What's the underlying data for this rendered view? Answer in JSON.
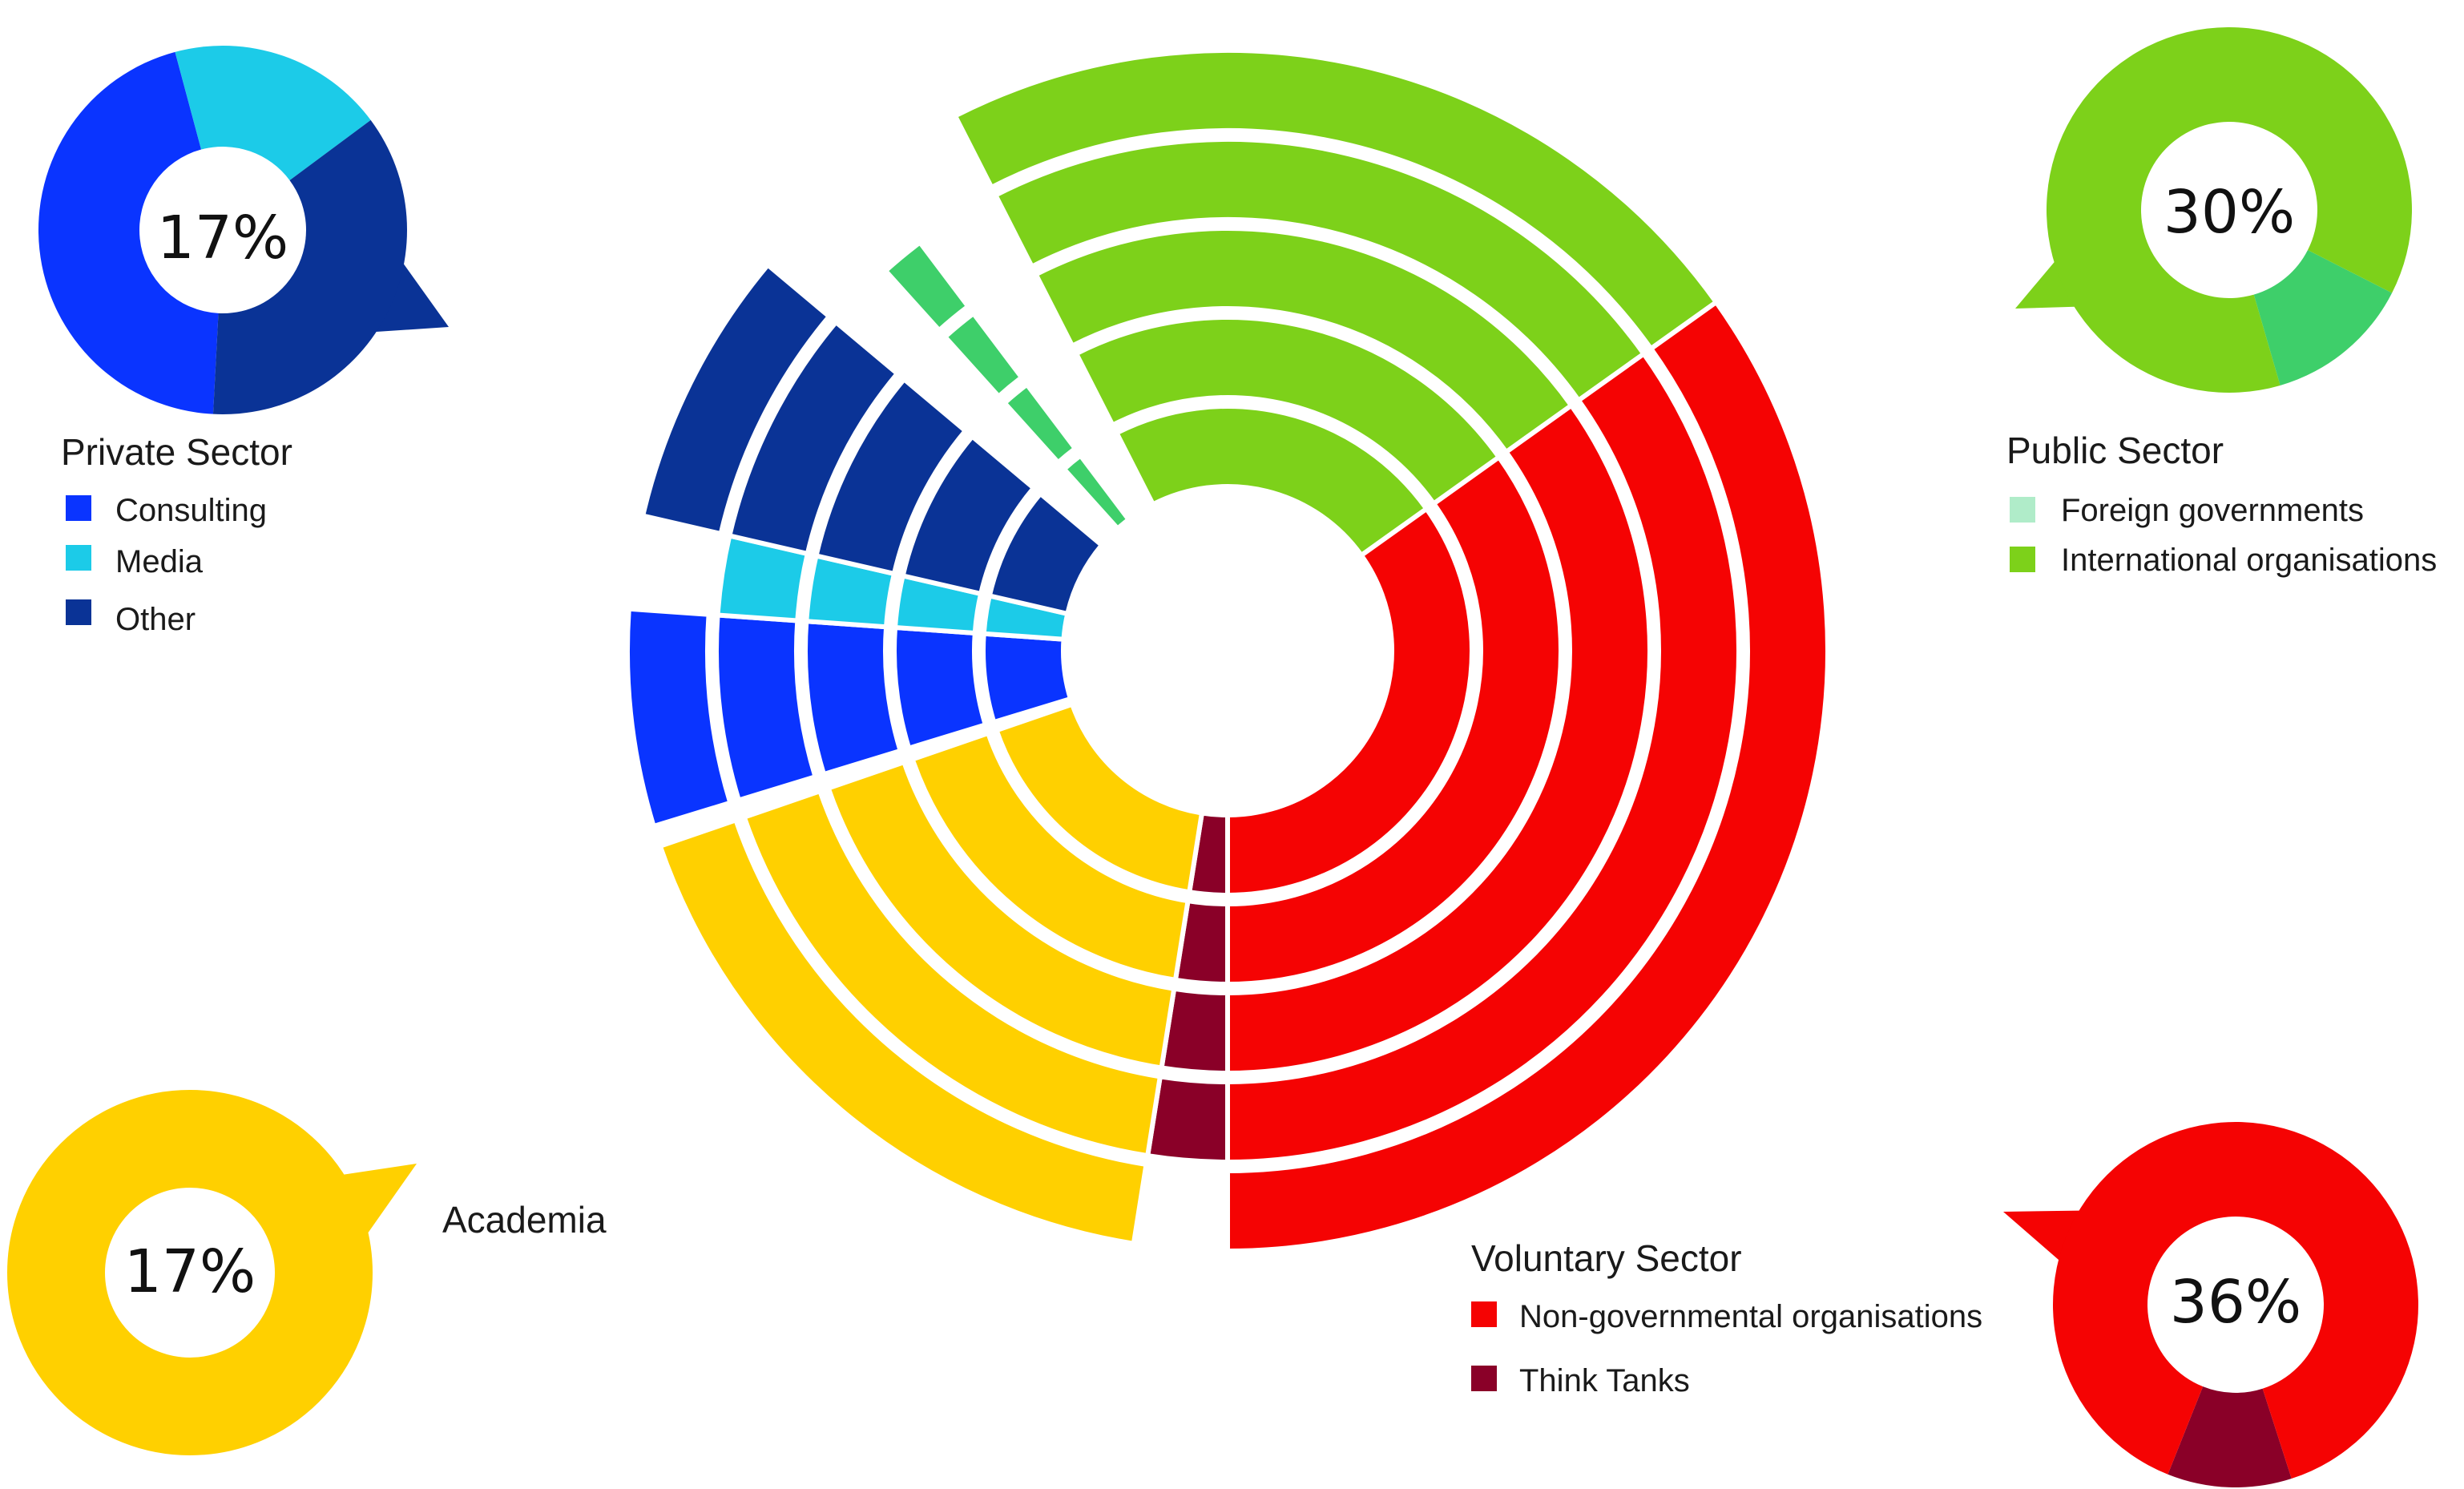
{
  "colors": {
    "consulting": "#0a34ff",
    "media": "#1ccbe8",
    "other": "#0a3396",
    "foreign": "#3ecf6a",
    "foreign_legend": "#b0ecc9",
    "international": "#7dd11a",
    "ngo": "#f50303",
    "think": "#8a0028",
    "academia": "#ffd000"
  },
  "chart_data": {
    "type": "pie",
    "main": {
      "rings": 5,
      "sectors": [
        "International organisations",
        "Non-governmental organisations",
        "Think Tanks",
        "Academia",
        "Consulting",
        "Media",
        "Other",
        "Foreign governments"
      ]
    },
    "groups": [
      {
        "key": "private",
        "title": "Private Sector",
        "percent_label": "17%",
        "percent": 17,
        "legend": [
          {
            "label": "Consulting",
            "color_key": "consulting"
          },
          {
            "label": "Media",
            "color_key": "media"
          },
          {
            "label": "Other",
            "color_key": "other"
          }
        ],
        "slices": [
          {
            "name": "Consulting",
            "share": 0.45
          },
          {
            "name": "Media",
            "share": 0.19
          },
          {
            "name": "Other",
            "share": 0.36
          }
        ]
      },
      {
        "key": "public",
        "title": "Public Sector",
        "percent_label": "30%",
        "percent": 30,
        "legend": [
          {
            "label": "Foreign governments",
            "color_key": "foreign_legend"
          },
          {
            "label": "International organisations",
            "color_key": "international"
          }
        ],
        "slices": [
          {
            "name": "Foreign governments",
            "share": 0.13
          },
          {
            "name": "International organisations",
            "share": 0.87
          }
        ]
      },
      {
        "key": "academia",
        "title": "Academia",
        "percent_label": "17%",
        "percent": 17,
        "legend": [],
        "slices": [
          {
            "name": "Academia",
            "share": 1.0
          }
        ]
      },
      {
        "key": "voluntary",
        "title": "Voluntary Sector",
        "percent_label": "36%",
        "percent": 36,
        "legend": [
          {
            "label": "Non-governmental organisations",
            "color_key": "ngo"
          },
          {
            "label": "Think Tanks",
            "color_key": "think"
          }
        ],
        "slices": [
          {
            "name": "Think Tanks",
            "share": 0.11
          },
          {
            "name": "Non-governmental organisations",
            "share": 0.89
          }
        ]
      }
    ]
  }
}
